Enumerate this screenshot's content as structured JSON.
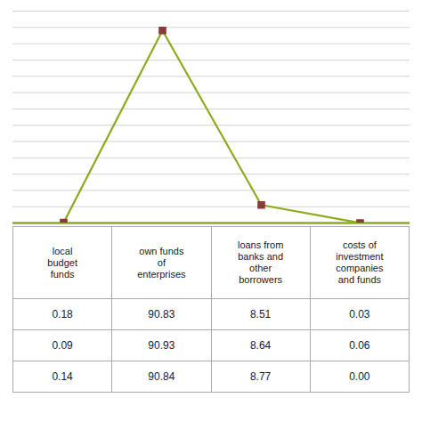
{
  "chart_data": {
    "type": "line",
    "categories": [
      "local\nbudget\nfunds",
      "own funds\nof\nenterprises",
      "loans from\nbanks and\nother\nborrowers",
      "costs of\ninvestment\ncompanies\nand funds"
    ],
    "values": [
      0.18,
      90.83,
      8.51,
      0.03
    ],
    "color": "#8aac1e",
    "marker": "square",
    "marker_color": "#8b3a3a",
    "ylim": [
      0,
      100
    ],
    "yticks": [
      0,
      7.6923076923076925,
      15.384615384615385,
      23.076923076923077,
      30.76923076923077,
      38.46153846153846,
      46.15384615384615,
      53.84615384615385,
      61.53846153846154,
      69.23076923076923,
      76.92307692307692,
      84.61538461538461,
      92.3076923076923,
      100
    ],
    "grid": true,
    "tick_labels": false,
    "table_rows": [
      [
        "0.18",
        "90.83",
        "8.51",
        "0.03"
      ],
      [
        "0.09",
        "90.93",
        "8.64",
        "0.06"
      ],
      [
        "0.14",
        "90.84",
        "8.77",
        "0.00"
      ]
    ]
  }
}
